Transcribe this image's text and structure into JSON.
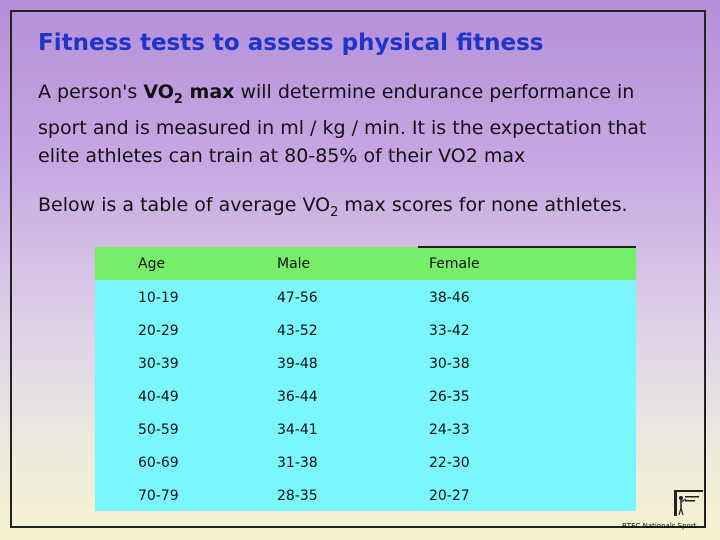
{
  "title": "Fitness tests to assess physical fitness",
  "intro": {
    "prefix": "A person's ",
    "vo_main": "VO",
    "vo_sub": "2",
    "vo_after": " max",
    "rest": " will determine endurance performance in sport and is measured in ml / kg / min. It is the expectation that elite athletes can train at 80-85% of their VO2 max"
  },
  "below": {
    "prefix": "Below is a table of average VO",
    "sub": "2",
    "suffix": " max scores for none athletes."
  },
  "table": {
    "headers": [
      "Age",
      "Male",
      "Female"
    ],
    "rows": [
      [
        "10-19",
        "47-56",
        "38-46"
      ],
      [
        "20-29",
        "43-52",
        "33-42"
      ],
      [
        "30-39",
        "39-48",
        "30-38"
      ],
      [
        "40-49",
        "36-44",
        "26-35"
      ],
      [
        "50-59",
        "34-41",
        "24-33"
      ],
      [
        "60-69",
        "31-38",
        "22-30"
      ],
      [
        "70-79",
        "28-35",
        "20-27"
      ]
    ]
  },
  "logo": {
    "text": "BTEC Nationals Sport"
  },
  "colors": {
    "title": "#1d35c8",
    "header_row": "#77ee6a",
    "body_rows": "#79f7fd"
  }
}
